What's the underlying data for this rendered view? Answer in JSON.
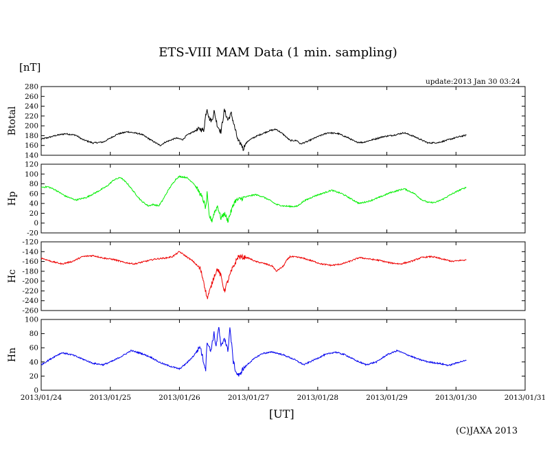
{
  "title": "ETS-VIII MAM Data (1 min. sampling)",
  "unit_label": "[nT]",
  "update_label": "update:2013 Jan 30 03:24",
  "x_axis_label": "[UT]",
  "credit": "(C)JAXA 2013",
  "chart_data": {
    "type": "line",
    "x_ticks": [
      "2013/01/24",
      "2013/01/25",
      "2013/01/26",
      "2013/01/27",
      "2013/01/28",
      "2013/01/29",
      "2013/01/30",
      "2013/01/31"
    ],
    "x_unit": "days since 2013/01/24 00:00 UT",
    "xlim": [
      0,
      7
    ],
    "panels": [
      {
        "name": "Btotal",
        "ylabel": "Btotal",
        "color": "#000000",
        "ylim": [
          140,
          280
        ],
        "yticks": [
          140,
          160,
          180,
          200,
          220,
          240,
          260,
          280
        ],
        "series": [
          [
            0,
            173
          ],
          [
            0.1,
            176
          ],
          [
            0.2,
            180
          ],
          [
            0.35,
            184
          ],
          [
            0.5,
            181
          ],
          [
            0.6,
            172
          ],
          [
            0.75,
            165
          ],
          [
            0.9,
            167
          ],
          [
            1.0,
            175
          ],
          [
            1.1,
            183
          ],
          [
            1.25,
            188
          ],
          [
            1.45,
            183
          ],
          [
            1.6,
            170
          ],
          [
            1.72,
            160
          ],
          [
            1.8,
            167
          ],
          [
            1.95,
            175
          ],
          [
            2.05,
            172
          ],
          [
            2.1,
            180
          ],
          [
            2.2,
            188
          ],
          [
            2.3,
            194
          ],
          [
            2.35,
            190
          ],
          [
            2.38,
            222
          ],
          [
            2.4,
            236
          ],
          [
            2.43,
            215
          ],
          [
            2.47,
            210
          ],
          [
            2.5,
            230
          ],
          [
            2.55,
            200
          ],
          [
            2.6,
            188
          ],
          [
            2.65,
            232
          ],
          [
            2.7,
            212
          ],
          [
            2.75,
            225
          ],
          [
            2.8,
            196
          ],
          [
            2.85,
            168
          ],
          [
            2.9,
            162
          ],
          [
            2.92,
            152
          ],
          [
            2.95,
            162
          ],
          [
            3.0,
            170
          ],
          [
            3.1,
            178
          ],
          [
            3.2,
            184
          ],
          [
            3.3,
            190
          ],
          [
            3.4,
            193
          ],
          [
            3.5,
            183
          ],
          [
            3.6,
            170
          ],
          [
            3.7,
            170
          ],
          [
            3.75,
            163
          ],
          [
            3.85,
            168
          ],
          [
            4.0,
            178
          ],
          [
            4.15,
            186
          ],
          [
            4.3,
            184
          ],
          [
            4.45,
            175
          ],
          [
            4.55,
            167
          ],
          [
            4.65,
            166
          ],
          [
            4.8,
            172
          ],
          [
            4.95,
            178
          ],
          [
            5.1,
            181
          ],
          [
            5.25,
            186
          ],
          [
            5.4,
            178
          ],
          [
            5.55,
            168
          ],
          [
            5.6,
            165
          ],
          [
            5.75,
            166
          ],
          [
            5.9,
            172
          ],
          [
            6.05,
            178
          ],
          [
            6.15,
            181
          ]
        ]
      },
      {
        "name": "Hp",
        "ylabel": "Hp",
        "color": "#00ee00",
        "ylim": [
          -20,
          120
        ],
        "yticks": [
          -20,
          0,
          20,
          40,
          60,
          80,
          100,
          120
        ],
        "series": [
          [
            0,
            73
          ],
          [
            0.1,
            74
          ],
          [
            0.2,
            68
          ],
          [
            0.35,
            55
          ],
          [
            0.5,
            47
          ],
          [
            0.65,
            52
          ],
          [
            0.8,
            63
          ],
          [
            0.95,
            75
          ],
          [
            1.05,
            88
          ],
          [
            1.15,
            93
          ],
          [
            1.25,
            80
          ],
          [
            1.35,
            62
          ],
          [
            1.45,
            45
          ],
          [
            1.5,
            40
          ],
          [
            1.55,
            35
          ],
          [
            1.62,
            38
          ],
          [
            1.7,
            35
          ],
          [
            1.75,
            45
          ],
          [
            1.85,
            70
          ],
          [
            1.95,
            90
          ],
          [
            2.0,
            95
          ],
          [
            2.1,
            93
          ],
          [
            2.2,
            82
          ],
          [
            2.3,
            60
          ],
          [
            2.35,
            45
          ],
          [
            2.38,
            30
          ],
          [
            2.4,
            60
          ],
          [
            2.43,
            15
          ],
          [
            2.47,
            5
          ],
          [
            2.5,
            20
          ],
          [
            2.55,
            35
          ],
          [
            2.6,
            10
          ],
          [
            2.65,
            20
          ],
          [
            2.7,
            5
          ],
          [
            2.75,
            25
          ],
          [
            2.8,
            45
          ],
          [
            2.9,
            50
          ],
          [
            3.0,
            55
          ],
          [
            3.1,
            58
          ],
          [
            3.2,
            54
          ],
          [
            3.3,
            47
          ],
          [
            3.4,
            38
          ],
          [
            3.5,
            35
          ],
          [
            3.6,
            34
          ],
          [
            3.7,
            34
          ],
          [
            3.8,
            45
          ],
          [
            3.95,
            55
          ],
          [
            4.1,
            62
          ],
          [
            4.2,
            67
          ],
          [
            4.35,
            60
          ],
          [
            4.5,
            48
          ],
          [
            4.6,
            40
          ],
          [
            4.75,
            45
          ],
          [
            4.9,
            53
          ],
          [
            5.05,
            62
          ],
          [
            5.15,
            66
          ],
          [
            5.25,
            70
          ],
          [
            5.4,
            60
          ],
          [
            5.5,
            48
          ],
          [
            5.6,
            42
          ],
          [
            5.7,
            42
          ],
          [
            5.8,
            48
          ],
          [
            5.95,
            60
          ],
          [
            6.05,
            67
          ],
          [
            6.15,
            73
          ]
        ]
      },
      {
        "name": "Hc",
        "ylabel": "Hc",
        "color": "#ee0000",
        "ylim": [
          -260,
          -120
        ],
        "yticks": [
          -260,
          -240,
          -220,
          -200,
          -180,
          -160,
          -140,
          -120
        ],
        "series": [
          [
            0,
            -153
          ],
          [
            0.15,
            -160
          ],
          [
            0.3,
            -165
          ],
          [
            0.45,
            -160
          ],
          [
            0.6,
            -150
          ],
          [
            0.75,
            -148
          ],
          [
            0.9,
            -153
          ],
          [
            1.05,
            -156
          ],
          [
            1.2,
            -162
          ],
          [
            1.35,
            -165
          ],
          [
            1.5,
            -160
          ],
          [
            1.65,
            -155
          ],
          [
            1.8,
            -153
          ],
          [
            1.9,
            -150
          ],
          [
            2.0,
            -140
          ],
          [
            2.1,
            -150
          ],
          [
            2.2,
            -160
          ],
          [
            2.3,
            -175
          ],
          [
            2.35,
            -200
          ],
          [
            2.4,
            -235
          ],
          [
            2.45,
            -215
          ],
          [
            2.5,
            -190
          ],
          [
            2.55,
            -175
          ],
          [
            2.6,
            -190
          ],
          [
            2.65,
            -220
          ],
          [
            2.7,
            -200
          ],
          [
            2.75,
            -180
          ],
          [
            2.8,
            -165
          ],
          [
            2.85,
            -150
          ],
          [
            3.0,
            -153
          ],
          [
            3.1,
            -160
          ],
          [
            3.25,
            -165
          ],
          [
            3.35,
            -170
          ],
          [
            3.4,
            -180
          ],
          [
            3.5,
            -170
          ],
          [
            3.55,
            -158
          ],
          [
            3.6,
            -150
          ],
          [
            3.75,
            -152
          ],
          [
            3.9,
            -158
          ],
          [
            4.05,
            -165
          ],
          [
            4.2,
            -168
          ],
          [
            4.35,
            -165
          ],
          [
            4.5,
            -158
          ],
          [
            4.6,
            -152
          ],
          [
            4.75,
            -155
          ],
          [
            4.9,
            -158
          ],
          [
            5.05,
            -163
          ],
          [
            5.2,
            -165
          ],
          [
            5.35,
            -160
          ],
          [
            5.5,
            -152
          ],
          [
            5.65,
            -150
          ],
          [
            5.8,
            -155
          ],
          [
            5.95,
            -160
          ],
          [
            6.05,
            -158
          ],
          [
            6.15,
            -157
          ]
        ]
      },
      {
        "name": "Hn",
        "ylabel": "Hn",
        "color": "#0000ee",
        "ylim": [
          0,
          100
        ],
        "yticks": [
          0,
          20,
          40,
          60,
          80,
          100
        ],
        "series": [
          [
            0,
            36
          ],
          [
            0.1,
            42
          ],
          [
            0.2,
            48
          ],
          [
            0.3,
            53
          ],
          [
            0.45,
            50
          ],
          [
            0.6,
            44
          ],
          [
            0.75,
            38
          ],
          [
            0.9,
            36
          ],
          [
            1.05,
            42
          ],
          [
            1.2,
            50
          ],
          [
            1.3,
            56
          ],
          [
            1.45,
            52
          ],
          [
            1.6,
            46
          ],
          [
            1.7,
            40
          ],
          [
            1.8,
            36
          ],
          [
            1.9,
            33
          ],
          [
            2.0,
            30
          ],
          [
            2.1,
            38
          ],
          [
            2.2,
            48
          ],
          [
            2.3,
            62
          ],
          [
            2.35,
            40
          ],
          [
            2.38,
            30
          ],
          [
            2.4,
            70
          ],
          [
            2.45,
            55
          ],
          [
            2.5,
            80
          ],
          [
            2.53,
            62
          ],
          [
            2.57,
            90
          ],
          [
            2.6,
            60
          ],
          [
            2.65,
            75
          ],
          [
            2.7,
            55
          ],
          [
            2.73,
            88
          ],
          [
            2.78,
            40
          ],
          [
            2.82,
            25
          ],
          [
            2.87,
            20
          ],
          [
            2.9,
            28
          ],
          [
            3.0,
            38
          ],
          [
            3.1,
            46
          ],
          [
            3.2,
            52
          ],
          [
            3.35,
            54
          ],
          [
            3.5,
            50
          ],
          [
            3.65,
            44
          ],
          [
            3.8,
            36
          ],
          [
            3.95,
            43
          ],
          [
            4.1,
            50
          ],
          [
            4.25,
            54
          ],
          [
            4.4,
            50
          ],
          [
            4.55,
            42
          ],
          [
            4.7,
            36
          ],
          [
            4.85,
            40
          ],
          [
            5.0,
            50
          ],
          [
            5.15,
            56
          ],
          [
            5.3,
            50
          ],
          [
            5.45,
            44
          ],
          [
            5.6,
            40
          ],
          [
            5.75,
            38
          ],
          [
            5.9,
            35
          ],
          [
            6.05,
            40
          ],
          [
            6.15,
            42
          ]
        ]
      }
    ]
  }
}
